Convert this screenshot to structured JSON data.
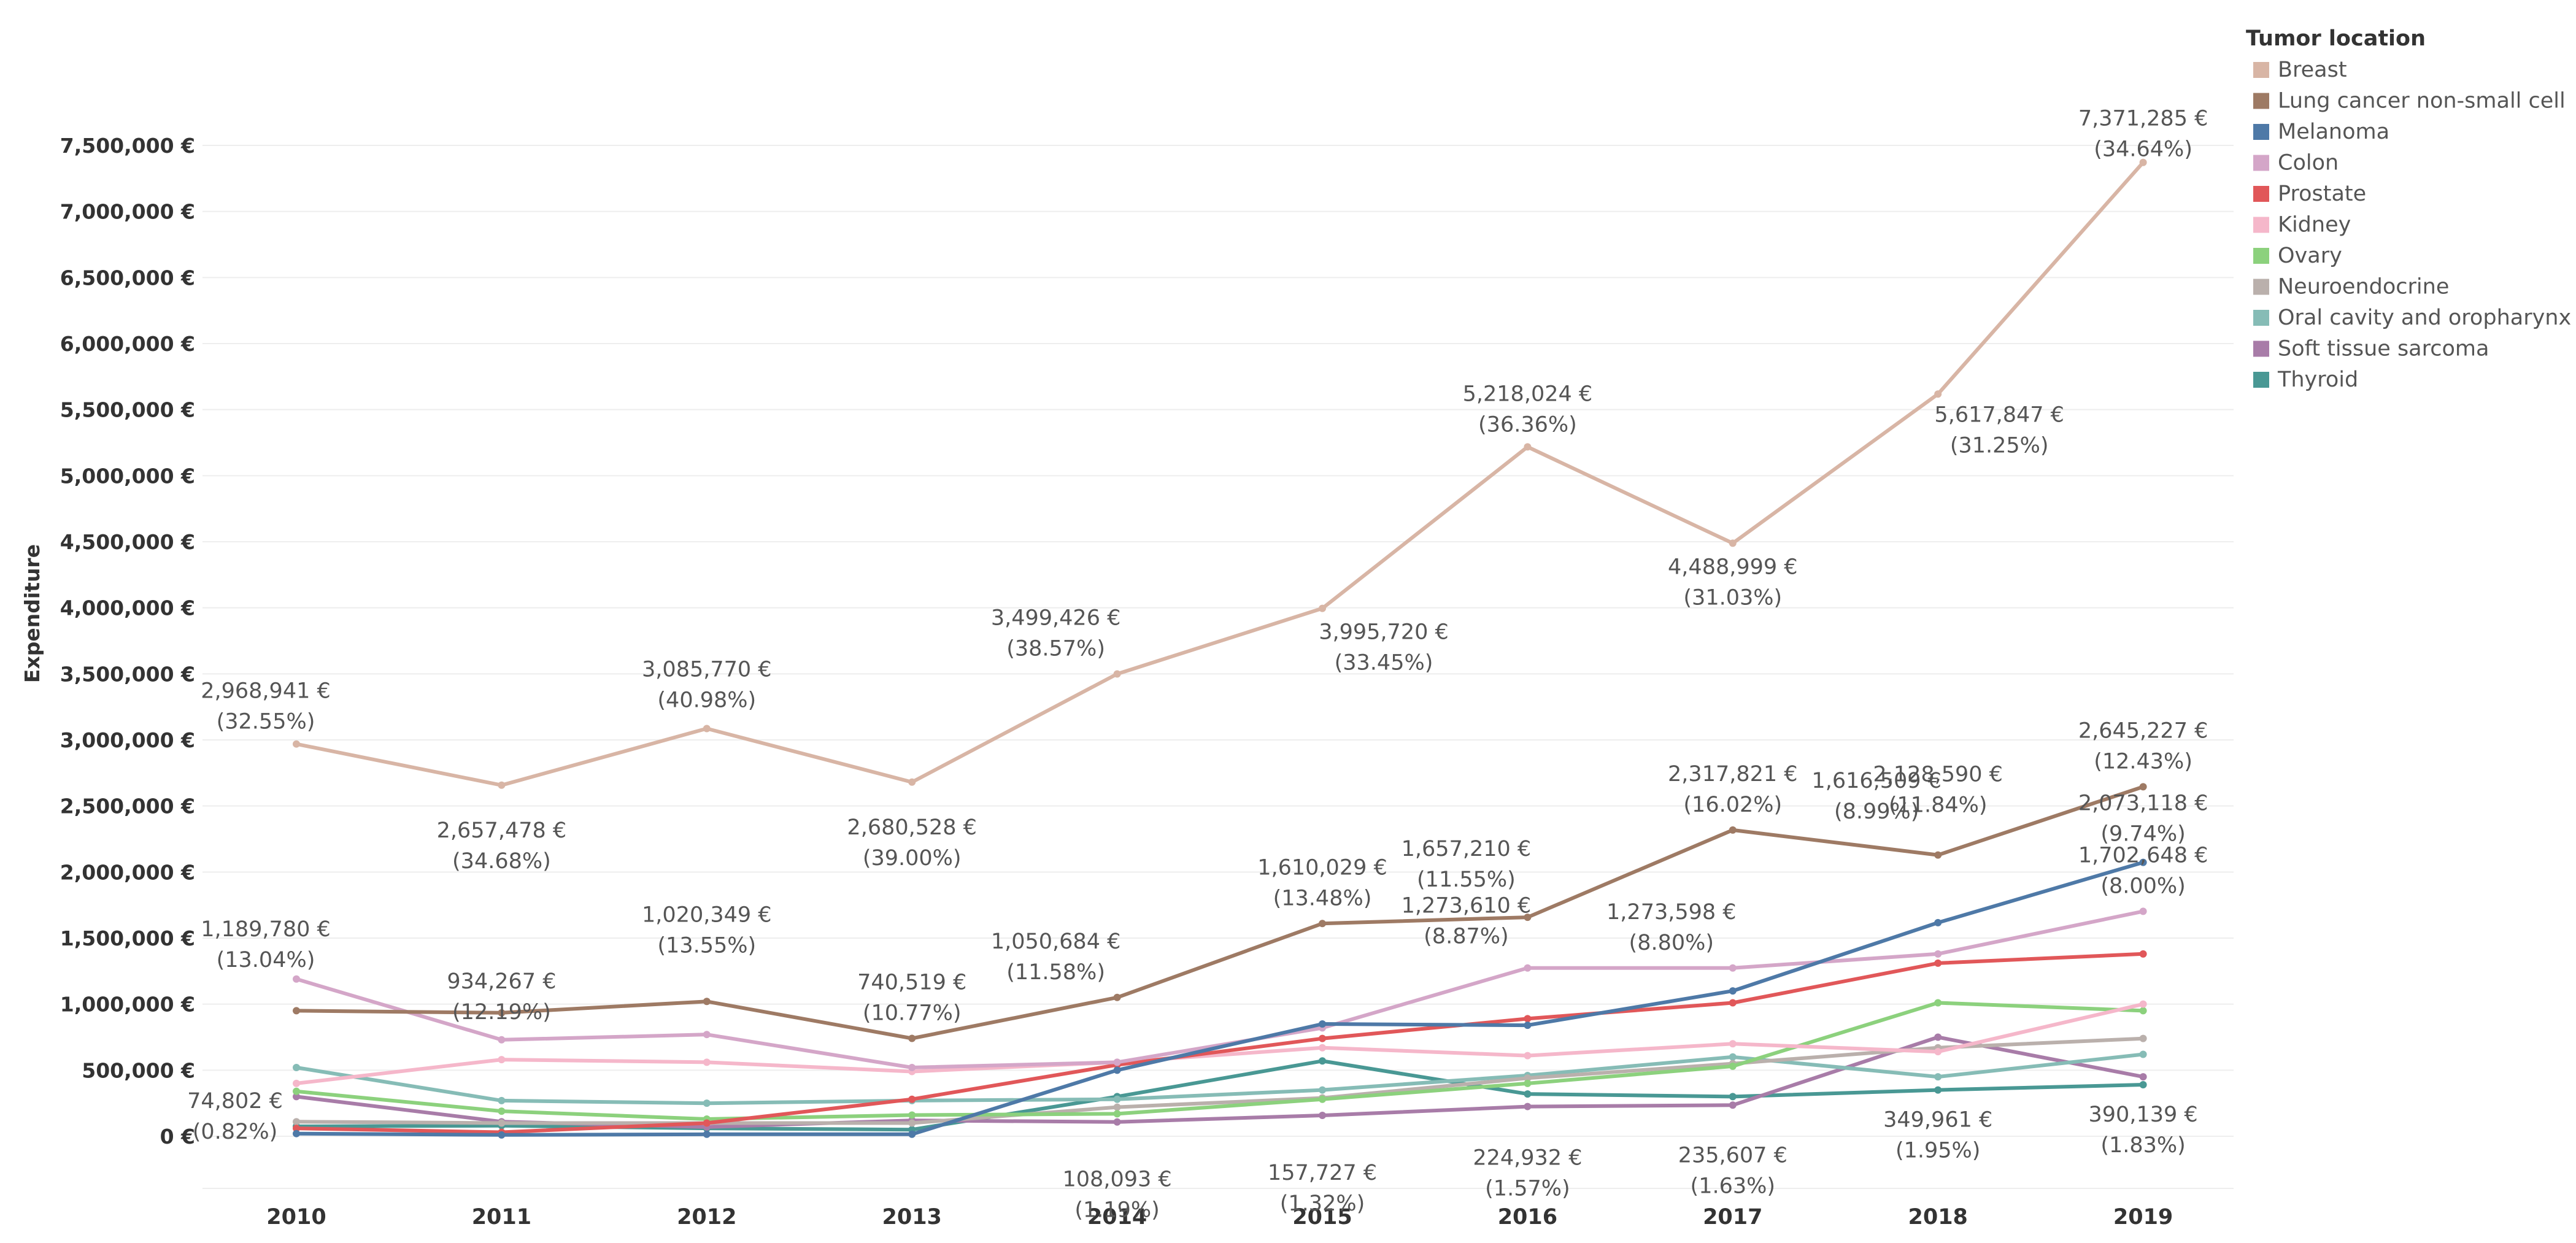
{
  "chart_data": {
    "type": "line",
    "title": "",
    "xlabel": "",
    "ylabel": "Expenditure",
    "ylim": [
      0,
      7500000
    ],
    "x": [
      "2010",
      "2011",
      "2012",
      "2013",
      "2014",
      "2015",
      "2016",
      "2017",
      "2018",
      "2019"
    ],
    "y_ticks": [
      "0 €",
      "500,000 €",
      "1,000,000 €",
      "1,500,000 €",
      "2,000,000 €",
      "2,500,000 €",
      "3,000,000 €",
      "3,500,000 €",
      "4,000,000 €",
      "4,500,000 €",
      "5,000,000 €",
      "5,500,000 €",
      "6,000,000 €",
      "6,500,000 €",
      "7,000,000 €",
      "7,500,000 €"
    ],
    "legend_title": "Tumor location",
    "legend_position": "right",
    "series": [
      {
        "name": "Breast",
        "color": "#d8b5a5",
        "values": [
          2968941,
          2657478,
          3085770,
          2680528,
          3499426,
          3995720,
          5218024,
          4488999,
          5617847,
          7371285
        ],
        "labels": [
          [
            "2,968,941 €",
            "(32.55%)"
          ],
          [
            "2,657,478 €",
            "(34.68%)"
          ],
          [
            "3,085,770 €",
            "(40.98%)"
          ],
          [
            "2,680,528 €",
            "(39.00%)"
          ],
          [
            "3,499,426 €",
            "(38.57%)"
          ],
          [
            "3,995,720 €",
            "(33.45%)"
          ],
          [
            "5,218,024 €",
            "(36.36%)"
          ],
          [
            "4,488,999 €",
            "(31.03%)"
          ],
          [
            "5,617,847 €",
            "(31.25%)"
          ],
          [
            "7,371,285 €",
            "(34.64%)"
          ]
        ]
      },
      {
        "name": "Lung cancer non-small cell",
        "color": "#9e7a64",
        "values": [
          950000,
          934267,
          1020349,
          740519,
          1050684,
          1610029,
          1657210,
          2317821,
          2128590,
          2645227
        ],
        "labels": [
          null,
          [
            "934,267 €",
            "(12.19%)"
          ],
          [
            "1,020,349 €",
            "(13.55%)"
          ],
          [
            "740,519 €",
            "(10.77%)"
          ],
          [
            "1,050,684 €",
            "(11.58%)"
          ],
          [
            "1,610,029 €",
            "(13.48%)"
          ],
          [
            "1,657,210 €",
            "(11.55%)"
          ],
          [
            "2,317,821 €",
            "(16.02%)"
          ],
          [
            "2,128,590 €",
            "(11.84%)"
          ],
          [
            "2,645,227 €",
            "(12.43%)"
          ]
        ]
      },
      {
        "name": "Melanoma",
        "color": "#4e79a7",
        "values": [
          20000,
          10000,
          15000,
          15000,
          500000,
          850000,
          840000,
          1100000,
          1616509,
          2073118
        ],
        "labels": [
          null,
          null,
          null,
          null,
          null,
          null,
          null,
          null,
          [
            "1,616,509 €",
            "(8.99%)"
          ],
          [
            "2,073,118 €",
            "(9.74%)"
          ]
        ]
      },
      {
        "name": "Colon",
        "color": "#d4a6c8",
        "values": [
          1189780,
          730000,
          770000,
          520000,
          560000,
          820000,
          1273610,
          1273598,
          1380000,
          1702648
        ],
        "labels": [
          [
            "1,189,780 €",
            "(13.04%)"
          ],
          null,
          null,
          null,
          null,
          null,
          [
            "1,273,610 €",
            "(8.87%)"
          ],
          [
            "1,273,598 €",
            "(8.80%)"
          ],
          null,
          [
            "1,702,648 €",
            "(8.00%)"
          ]
        ]
      },
      {
        "name": "Prostate",
        "color": "#e15759",
        "values": [
          60000,
          30000,
          100000,
          280000,
          540000,
          740000,
          890000,
          1010000,
          1310000,
          1380000
        ],
        "labels": []
      },
      {
        "name": "Kidney",
        "color": "#f5b7ca",
        "values": [
          400000,
          580000,
          560000,
          490000,
          560000,
          670000,
          610000,
          700000,
          640000,
          1000000
        ],
        "labels": []
      },
      {
        "name": "Ovary",
        "color": "#8cd17d",
        "values": [
          340000,
          190000,
          130000,
          160000,
          170000,
          280000,
          400000,
          530000,
          1010000,
          950000
        ],
        "labels": []
      },
      {
        "name": "Neuroendocrine",
        "color": "#bab0ac",
        "values": [
          110000,
          100000,
          100000,
          100000,
          220000,
          290000,
          440000,
          550000,
          670000,
          740000
        ],
        "labels": []
      },
      {
        "name": "Oral cavity and oropharynx",
        "color": "#86bcb6",
        "values": [
          520000,
          270000,
          250000,
          270000,
          280000,
          350000,
          460000,
          600000,
          450000,
          620000
        ],
        "labels": []
      },
      {
        "name": "Soft tissue sarcoma",
        "color": "#a87ca8",
        "values": [
          300000,
          110000,
          70000,
          120000,
          108093,
          157727,
          224932,
          235607,
          750000,
          450000
        ],
        "labels": [
          null,
          null,
          null,
          null,
          [
            "108,093 €",
            "(1.19%)"
          ],
          [
            "157,727 €",
            "(1.32%)"
          ],
          [
            "224,932 €",
            "(1.57%)"
          ],
          [
            "235,607 €",
            "(1.63%)"
          ],
          null,
          null
        ]
      },
      {
        "name": "Thyroid",
        "color": "#499894",
        "values": [
          74802,
          80000,
          60000,
          50000,
          300000,
          570000,
          320000,
          300000,
          349961,
          390139
        ],
        "labels": [
          [
            "74,802 €",
            "(0.82%)"
          ],
          null,
          null,
          null,
          null,
          null,
          null,
          null,
          [
            "349,961 €",
            "(1.95%)"
          ],
          [
            "390,139 €",
            "(1.83%)"
          ]
        ]
      }
    ]
  }
}
